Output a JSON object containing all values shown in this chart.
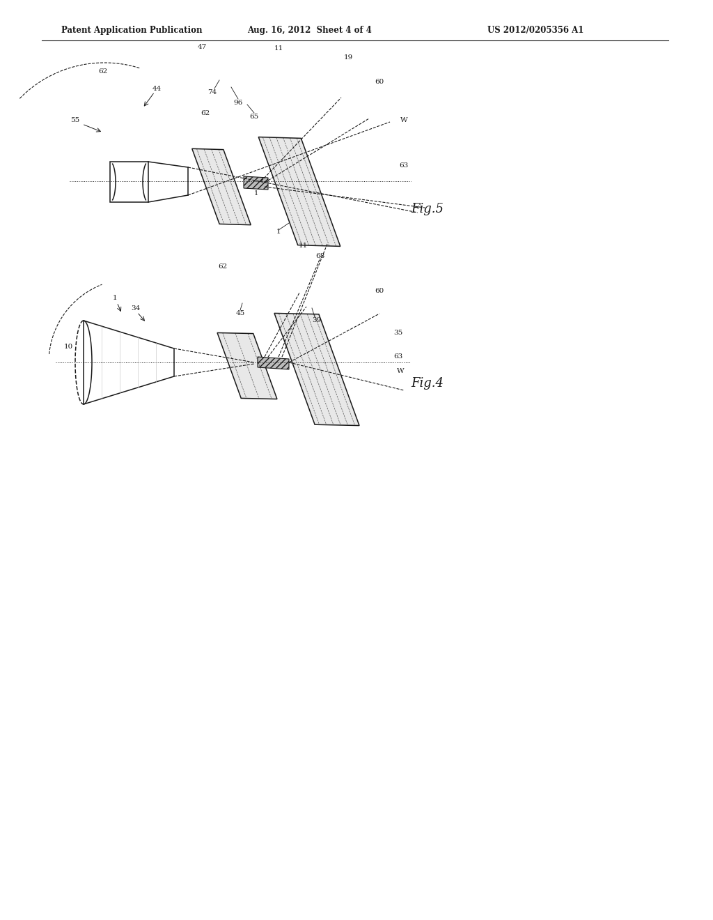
{
  "header_left": "Patent Application Publication",
  "header_mid": "Aug. 16, 2012  Sheet 4 of 4",
  "header_right": "US 2012/0205356 A1",
  "fig5_label": "Fig.5",
  "fig4_label": "Fig.4",
  "background": "#ffffff",
  "line_color": "#1a1a1a",
  "gray_fill": "#e8e8e8",
  "hatch_gray": "#999999"
}
